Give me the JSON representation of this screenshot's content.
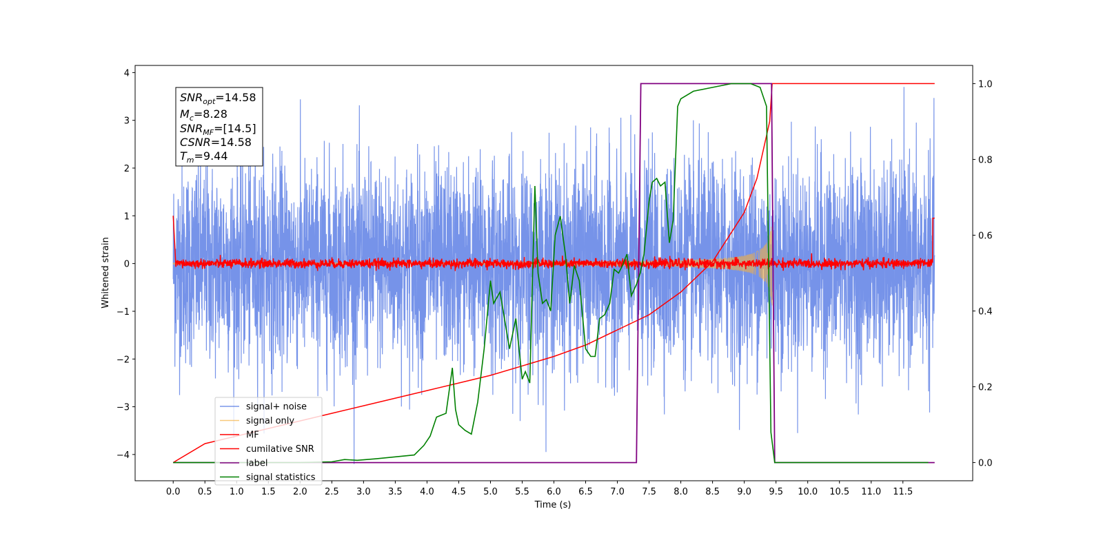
{
  "chart_data": {
    "type": "line",
    "xlabel": "Time (s)",
    "ylabel": "Whitened strain",
    "xlim": [
      -0.6,
      12.6
    ],
    "ylim": [
      -4.55,
      4.15
    ],
    "y2lim": [
      -0.048,
      1.048
    ],
    "xticks": [
      "0.0",
      "0.5",
      "1.0",
      "1.5",
      "2.0",
      "2.5",
      "3.0",
      "3.5",
      "4.0",
      "4.5",
      "5.0",
      "5.5",
      "6.0",
      "6.5",
      "7.0",
      "7.5",
      "8.0",
      "8.5",
      "9.0",
      "9.5",
      "10.0",
      "10.5",
      "11.0",
      "11.5"
    ],
    "xtick_values": [
      0,
      0.5,
      1,
      1.5,
      2,
      2.5,
      3,
      3.5,
      4,
      4.5,
      5,
      5.5,
      6,
      6.5,
      7,
      7.5,
      8,
      8.5,
      9,
      9.5,
      10,
      10.5,
      11,
      11.5
    ],
    "yticks": [
      "4",
      "3",
      "2",
      "1",
      "0",
      "−1",
      "−2",
      "−3",
      "−4"
    ],
    "ytick_values": [
      4,
      3,
      2,
      1,
      0,
      -1,
      -2,
      -3,
      -4
    ],
    "y2ticks": [
      "1.0",
      "0.8",
      "0.6",
      "0.4",
      "0.2",
      "0.0"
    ],
    "y2tick_values": [
      1,
      0.8,
      0.6,
      0.4,
      0.2,
      0
    ],
    "legend": {
      "placement": "lower left",
      "entries": [
        {
          "label": "signal+ noise",
          "color": "#4169e1"
        },
        {
          "label": "signal only",
          "color": "#f5b041"
        },
        {
          "label": "MF",
          "color": "#ff0000"
        },
        {
          "label": "cumilative SNR",
          "color": "#ff0000"
        },
        {
          "label": "label",
          "color": "#800080"
        },
        {
          "label": "signal statistics",
          "color": "#008000"
        }
      ]
    },
    "annotation": {
      "snr_opt": "14.58",
      "mc": "8.28",
      "snr_mf": "[14.5]",
      "csnr": "14.58",
      "tm": "9.44"
    },
    "series": [
      {
        "name": "signal+ noise",
        "axis": "left",
        "color": "#4169e1",
        "t_start": 0.0,
        "t_end": 12.0,
        "noise_sigma": 1.0,
        "envelope_max": 3.7,
        "envelope_min": -4.2
      },
      {
        "name": "signal only",
        "axis": "left",
        "color": "#f5b041",
        "t_start": 0.0,
        "t_end": 9.44,
        "amplitude_at_merger": 0.95
      },
      {
        "name": "MF",
        "axis": "left",
        "color": "#ff0000",
        "t_start": 0.0,
        "t_end": 12.0,
        "start_value": 1.0,
        "end_value": 0.95
      },
      {
        "name": "cumilative SNR",
        "axis": "right",
        "color": "#ff0000",
        "x": [
          0.0,
          0.5,
          1.0,
          1.5,
          2.0,
          2.5,
          3.0,
          3.5,
          4.0,
          4.5,
          5.0,
          5.5,
          6.0,
          6.5,
          7.0,
          7.5,
          8.0,
          8.5,
          9.0,
          9.2,
          9.4,
          9.44,
          10.0,
          11.0,
          12.0
        ],
        "y": [
          0.0,
          0.05,
          0.07,
          0.09,
          0.11,
          0.13,
          0.15,
          0.17,
          0.19,
          0.21,
          0.23,
          0.255,
          0.28,
          0.31,
          0.35,
          0.39,
          0.45,
          0.53,
          0.66,
          0.75,
          0.9,
          1.0,
          1.0,
          1.0,
          1.0
        ]
      },
      {
        "name": "label",
        "axis": "right",
        "color": "#800080",
        "x": [
          0.0,
          7.3,
          7.37,
          9.43,
          9.48,
          12.0
        ],
        "y": [
          0,
          0,
          1,
          1,
          0,
          0
        ]
      },
      {
        "name": "signal statistics",
        "axis": "right",
        "color": "#008000",
        "x": [
          0.0,
          0.5,
          1.0,
          1.5,
          2.0,
          2.5,
          2.7,
          2.9,
          3.2,
          3.5,
          3.8,
          3.95,
          4.05,
          4.15,
          4.3,
          4.4,
          4.45,
          4.5,
          4.6,
          4.7,
          4.8,
          4.9,
          5.0,
          5.05,
          5.15,
          5.25,
          5.3,
          5.4,
          5.5,
          5.55,
          5.62,
          5.7,
          5.75,
          5.82,
          5.88,
          5.95,
          6.02,
          6.1,
          6.18,
          6.25,
          6.32,
          6.4,
          6.5,
          6.58,
          6.65,
          6.72,
          6.8,
          6.88,
          6.95,
          7.02,
          7.08,
          7.15,
          7.22,
          7.3,
          7.36,
          7.42,
          7.5,
          7.55,
          7.62,
          7.68,
          7.75,
          7.82,
          7.88,
          7.95,
          8.0,
          8.2,
          8.5,
          8.8,
          9.1,
          9.25,
          9.35,
          9.42,
          9.48,
          9.6,
          10.0,
          11.0,
          11.9
        ],
        "y": [
          0.0,
          0.0,
          0.0,
          0.0,
          0.0,
          0.002,
          0.008,
          0.006,
          0.01,
          0.015,
          0.02,
          0.045,
          0.07,
          0.12,
          0.13,
          0.25,
          0.14,
          0.1,
          0.085,
          0.075,
          0.16,
          0.3,
          0.48,
          0.42,
          0.45,
          0.35,
          0.3,
          0.38,
          0.22,
          0.24,
          0.21,
          0.73,
          0.5,
          0.42,
          0.43,
          0.4,
          0.6,
          0.65,
          0.55,
          0.42,
          0.52,
          0.48,
          0.3,
          0.28,
          0.28,
          0.38,
          0.39,
          0.42,
          0.51,
          0.5,
          0.52,
          0.55,
          0.44,
          0.47,
          0.5,
          0.55,
          0.69,
          0.74,
          0.75,
          0.73,
          0.74,
          0.58,
          0.64,
          0.94,
          0.96,
          0.98,
          0.99,
          1.0,
          1.0,
          0.99,
          0.94,
          0.08,
          0.0,
          0.0,
          0.0,
          0.0,
          0.0
        ]
      }
    ]
  }
}
